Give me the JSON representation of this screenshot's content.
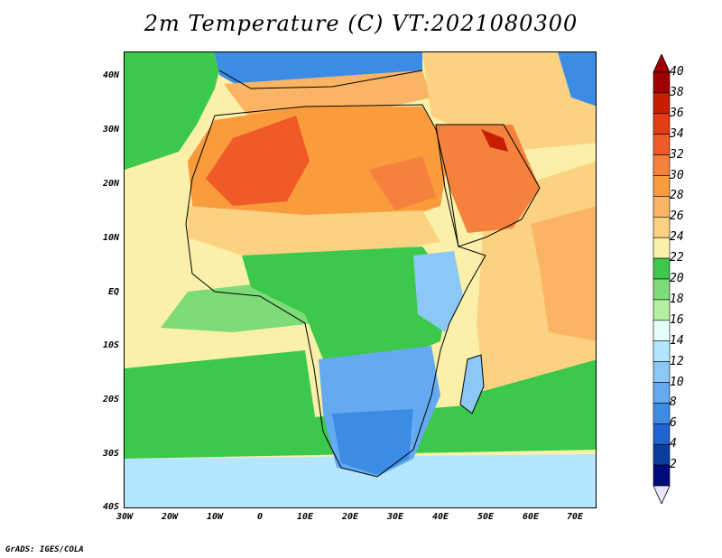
{
  "title": "2m Temperature (C) VT:2021080300",
  "credit": "GrADS: IGES/COLA",
  "lat_labels": [
    "40N",
    "30N",
    "20N",
    "10N",
    "EQ",
    "10S",
    "20S",
    "30S",
    "40S"
  ],
  "lon_labels": [
    "30W",
    "20W",
    "10W",
    "0",
    "10E",
    "20E",
    "30E",
    "40E",
    "50E",
    "60E",
    "70E"
  ],
  "colorbar": {
    "levels": [
      "40",
      "38",
      "36",
      "34",
      "32",
      "30",
      "28",
      "26",
      "24",
      "22",
      "20",
      "18",
      "16",
      "14",
      "12",
      "10",
      "8",
      "6",
      "4",
      "2"
    ],
    "colors": [
      "#a00000",
      "#c81e00",
      "#e63c14",
      "#f05a28",
      "#f5823c",
      "#fa9b3c",
      "#fab464",
      "#fad282",
      "#faf0aa",
      "#3cc84b",
      "#7ddc78",
      "#b4f0a0",
      "#e6fffa",
      "#b4e6ff",
      "#8cc8f5",
      "#64aaf0",
      "#3c8ce6",
      "#1e64d2",
      "#0a3ca0",
      "#000a78"
    ],
    "under_color": "#e6e6ff"
  },
  "map_data": {
    "variable": "2m Temperature",
    "units": "C",
    "valid_time": "2021080300",
    "lon_range": [
      -30,
      75
    ],
    "lat_range": [
      -40,
      45
    ],
    "projection": "lat-lon"
  },
  "regions": [
    {
      "name": "ocean-north-atlantic",
      "color": "#3cc84b"
    },
    {
      "name": "ocean-tropical-atlantic",
      "color": "#faf0aa"
    },
    {
      "name": "ocean-gulf-guinea",
      "color": "#7ddc78"
    },
    {
      "name": "ocean-south-atlantic",
      "color": "#3cc84b"
    },
    {
      "name": "ocean-southern",
      "color": "#b4e6ff"
    },
    {
      "name": "ocean-indian",
      "color": "#fad282"
    },
    {
      "name": "ocean-arabian-sea",
      "color": "#fab464"
    },
    {
      "name": "mediterranean",
      "color": "#fab464"
    },
    {
      "name": "europe",
      "color": "#3c8ce6"
    },
    {
      "name": "sahara",
      "color": "#fa9b3c"
    },
    {
      "name": "sahara-hot-west",
      "color": "#f05a28"
    },
    {
      "name": "sahara-hot-east",
      "color": "#f5823c"
    },
    {
      "name": "arabia",
      "color": "#f5823c"
    },
    {
      "name": "persian-gulf",
      "color": "#c81e00"
    },
    {
      "name": "sahel",
      "color": "#fad282"
    },
    {
      "name": "central-africa",
      "color": "#3cc84b"
    },
    {
      "name": "east-africa-highlands",
      "color": "#8cc8f5"
    },
    {
      "name": "southern-africa",
      "color": "#64aaf0"
    },
    {
      "name": "south-africa-cold",
      "color": "#3c8ce6"
    },
    {
      "name": "madagascar",
      "color": "#8cc8f5"
    }
  ]
}
